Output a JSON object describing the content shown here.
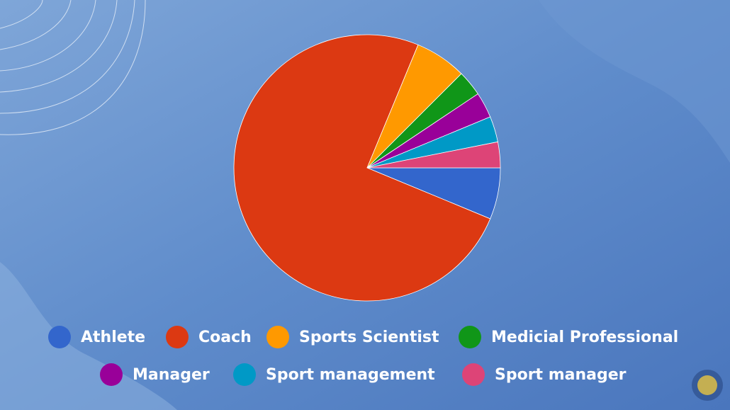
{
  "chart_data": {
    "type": "pie",
    "categories": [
      "Athlete",
      "Coach",
      "Sports Scientist",
      "Medicial Professional",
      "Manager",
      "Sport management",
      "Sport manager"
    ],
    "values": [
      6.25,
      75,
      6.25,
      3.125,
      3.125,
      3.125,
      3.125
    ],
    "colors": [
      "#3366cc",
      "#dc3912",
      "#ff9900",
      "#109618",
      "#990099",
      "#0099c6",
      "#dd4477"
    ]
  }
}
